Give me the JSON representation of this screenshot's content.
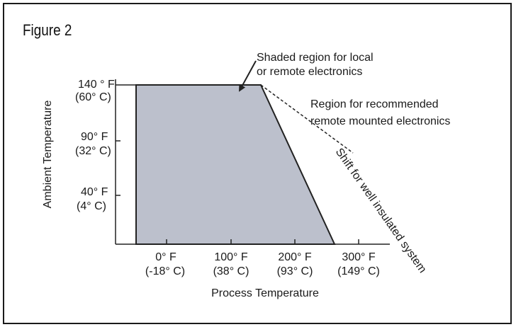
{
  "figure": {
    "title": "Figure 2",
    "colors": {
      "shaded_region": "#BCC0CC",
      "lines": "#222222",
      "frame": "#1A1A1A"
    },
    "y_axis": {
      "label": "Ambient Temperature",
      "ticks": [
        {
          "f": "140 ° F",
          "c": "(60° C)"
        },
        {
          "f": "90° F",
          "c": "(32° C)"
        },
        {
          "f": "40° F",
          "c": "(4° C)"
        }
      ]
    },
    "x_axis": {
      "label": "Process Temperature",
      "ticks": [
        {
          "f": "0° F",
          "c": "(-18° C)"
        },
        {
          "f": "100° F",
          "c": "(38° C)"
        },
        {
          "f": "200° F",
          "c": "(93° C)"
        },
        {
          "f": "300° F",
          "c": "(149° C)"
        }
      ]
    },
    "annotations": {
      "shaded_line1": "Shaded region for local",
      "shaded_line2": "or remote electronics",
      "remote_line1": "Region for recommended",
      "remote_line2": "remote mounted electronics",
      "shift_label": "Shift for well insulated system"
    }
  }
}
